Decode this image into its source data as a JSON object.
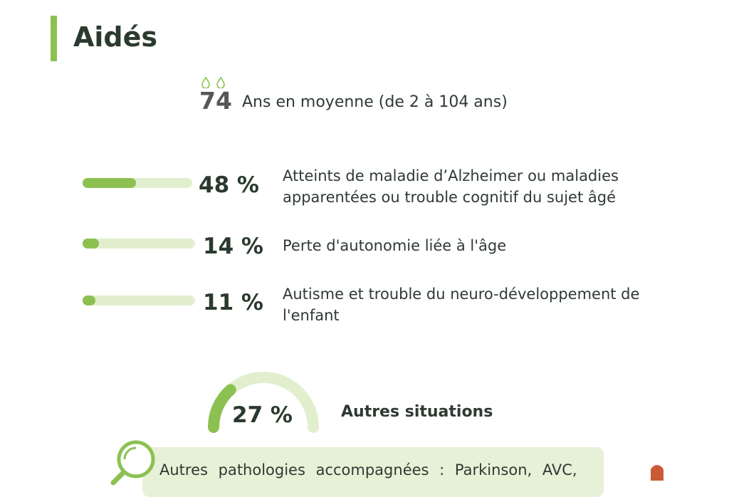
{
  "title": "Aidés",
  "age": {
    "value": "74",
    "label": "Ans en moyenne (de 2 à 104 ans)"
  },
  "stats": [
    {
      "percent_label": "48 %",
      "value": 48,
      "description": "Atteints de maladie d’Alzheimer ou maladies apparentées ou trouble cognitif du sujet âgé"
    },
    {
      "percent_label": "14 %",
      "value": 14,
      "description": "Perte d'autonomie liée à l'âge"
    },
    {
      "percent_label": "11 %",
      "value": 11,
      "description": "Autisme et trouble du neuro-développement de l'enfant"
    }
  ],
  "other": {
    "percent_label": "27 %",
    "value": 27,
    "label": "Autres situations"
  },
  "note": {
    "text": "Autres pathologies accompagnées : Parkinson, AVC,"
  },
  "colors": {
    "accent": "#8cc152",
    "track": "#e2efcf",
    "note_bg": "#e7f1d7"
  },
  "icons": [
    "flame-icon",
    "magnifier-icon",
    "person-icon"
  ]
}
